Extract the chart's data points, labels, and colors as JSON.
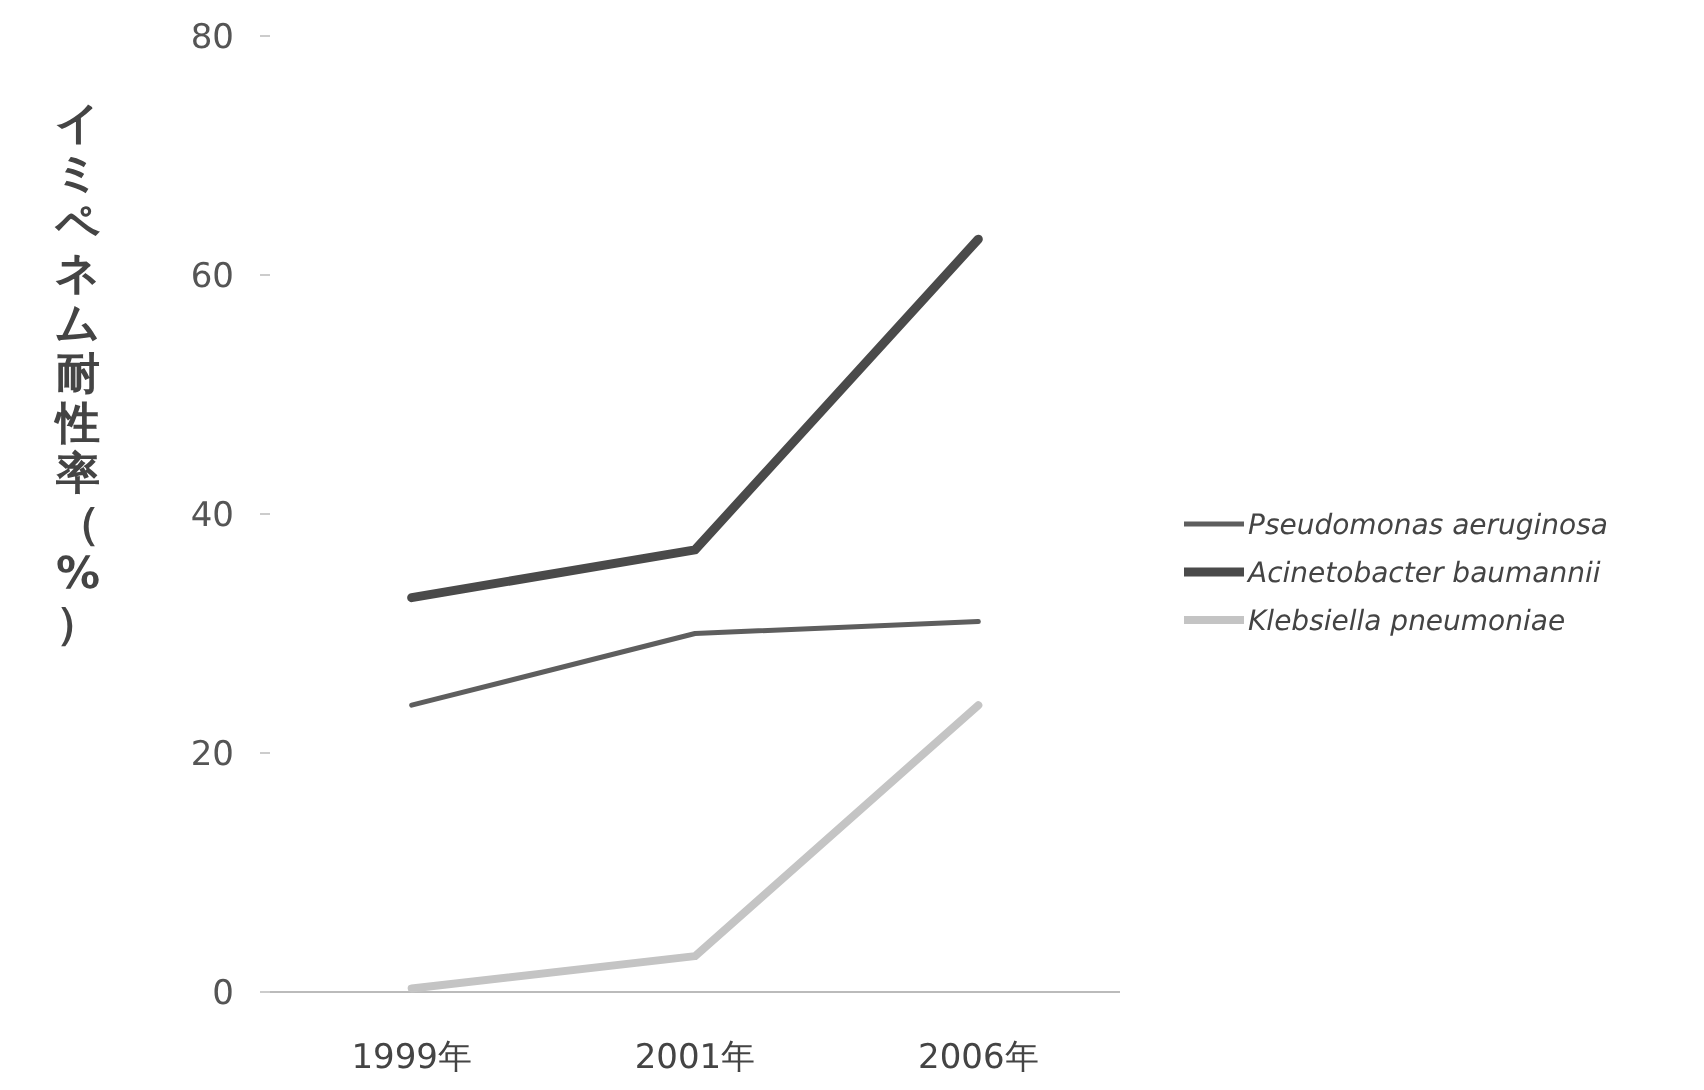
{
  "chart_data": {
    "type": "line",
    "ylabel": "イミペネム耐性率（%）",
    "categories": [
      "1999年",
      "2001年",
      "2006年"
    ],
    "series": [
      {
        "name": "*Pseudomonas aeruginosa*",
        "color": "#5e5e5e",
        "values": [
          24,
          30,
          31
        ]
      },
      {
        "name": "*Acinetobacter baumannii*",
        "color": "#4a4a4a",
        "values": [
          33,
          37,
          63
        ]
      },
      {
        "name": "*Klebsiella pneumoniae*",
        "color": "#c4c4c4",
        "values": [
          0.3,
          3,
          24
        ]
      }
    ],
    "ylim": [
      0,
      80
    ],
    "yticks": [
      0,
      20,
      40,
      60,
      80
    ],
    "legend": "right",
    "grid": false
  }
}
